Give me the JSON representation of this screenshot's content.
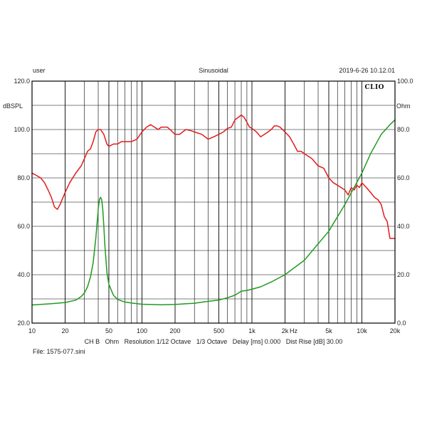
{
  "header": {
    "left": "user",
    "center": "Sinusoidal",
    "right": "2019-6-26 10.12.01"
  },
  "logo": "CLIO",
  "footer": {
    "settings": "CH B   Ohm   Resolution 1/12 Octave   1/3 Octave   Delay [ms] 0.000   Dist Rise [dB] 30.00",
    "file": "File: 1575-077.sini"
  },
  "colors": {
    "spl": "#e31b1b",
    "impedance": "#1f9a1f",
    "grid": "#000000"
  },
  "chart_data": {
    "type": "line",
    "xscale": "log",
    "xlim": [
      10,
      20000
    ],
    "grid": true,
    "x_tick_labels": [
      {
        "value": 10,
        "label": "10"
      },
      {
        "value": 20,
        "label": "20"
      },
      {
        "value": 50,
        "label": "50"
      },
      {
        "value": 100,
        "label": "100"
      },
      {
        "value": 200,
        "label": "200"
      },
      {
        "value": 500,
        "label": "500"
      },
      {
        "value": 1000,
        "label": "1k"
      },
      {
        "value": 2000,
        "label": "2k"
      },
      {
        "value": 5000,
        "label": "5k"
      },
      {
        "value": 10000,
        "label": "10k"
      },
      {
        "value": 20000,
        "label": "20k"
      }
    ],
    "x_unit": "Hz",
    "left_axis": {
      "unit": "dBSPL",
      "ylim": [
        20,
        120
      ],
      "ticks": [
        "20.0",
        "40.0",
        "60.0",
        "80.0",
        "100.0",
        "120.0"
      ]
    },
    "right_axis": {
      "unit": "Ohm",
      "ylim": [
        0,
        100
      ],
      "ticks": [
        "0.0",
        "20.0",
        "40.0",
        "60.0",
        "80.0",
        "100.0"
      ]
    },
    "series": [
      {
        "axis": "left",
        "color": "#e31b1b",
        "x": [
          10,
          11,
          12,
          13,
          14,
          15,
          16,
          17,
          18,
          20,
          22,
          25,
          28,
          30,
          32,
          34,
          36,
          38,
          40,
          42,
          45,
          48,
          50,
          55,
          60,
          65,
          70,
          80,
          90,
          100,
          110,
          120,
          130,
          140,
          150,
          160,
          170,
          180,
          200,
          220,
          250,
          280,
          300,
          350,
          400,
          450,
          500,
          550,
          600,
          650,
          700,
          750,
          800,
          850,
          900,
          950,
          1000,
          1100,
          1200,
          1300,
          1400,
          1500,
          1600,
          1700,
          1800,
          2000,
          2200,
          2400,
          2600,
          2800,
          3000,
          3500,
          4000,
          4500,
          5000,
          5500,
          6000,
          7000,
          7500,
          8000,
          8500,
          9000,
          9500,
          10000,
          11000,
          12000,
          13000,
          14000,
          15000,
          16000,
          17000,
          18000,
          20000
        ],
        "y": [
          82,
          81,
          80,
          78,
          75,
          72,
          68,
          67,
          69,
          74,
          78,
          82,
          85,
          88,
          91,
          92,
          95,
          99,
          100,
          100,
          98,
          94,
          93,
          94,
          94,
          95,
          95,
          95,
          96,
          99,
          101,
          102,
          101,
          100,
          101,
          101,
          101,
          100,
          98,
          98,
          100,
          99.5,
          99,
          98,
          96,
          97,
          98,
          99,
          100.5,
          101,
          104,
          105,
          106,
          105,
          103,
          101,
          100.5,
          99,
          97,
          98,
          99,
          100,
          101.5,
          101.5,
          101,
          99,
          97,
          94,
          91,
          91,
          90,
          88,
          85,
          84,
          80,
          78,
          77,
          75,
          73,
          76,
          75,
          77,
          76,
          78,
          76,
          74,
          72,
          71,
          69,
          64,
          62,
          55,
          55
        ]
      },
      {
        "axis": "right",
        "color": "#1f9a1f",
        "x": [
          10,
          15,
          20,
          25,
          28,
          30,
          32,
          34,
          36,
          38,
          40,
          41,
          42,
          43,
          44,
          45,
          46,
          48,
          50,
          55,
          60,
          65,
          70,
          80,
          100,
          150,
          200,
          300,
          400,
          500,
          600,
          700,
          800,
          900,
          1000,
          1200,
          1500,
          2000,
          3000,
          5000,
          7000,
          10000,
          12000,
          15000,
          18000,
          20000
        ],
        "y": [
          7.5,
          8,
          8.5,
          9.5,
          11,
          12.5,
          15,
          19,
          25,
          35,
          47,
          51,
          52,
          51,
          47,
          40,
          32,
          21,
          16,
          11.5,
          9.8,
          9.2,
          8.7,
          8.3,
          7.8,
          7.6,
          7.7,
          8.2,
          9,
          9.5,
          10.5,
          11.5,
          13.2,
          13.5,
          14,
          15,
          17,
          20,
          26,
          38,
          49,
          62,
          70,
          78,
          82,
          84
        ]
      }
    ]
  }
}
